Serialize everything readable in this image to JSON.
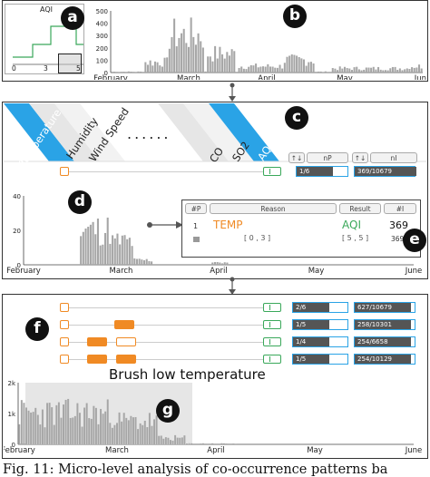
{
  "colors": {
    "accent_blue": "#2aa3e6",
    "orange": "#f08a24",
    "green": "#3aa85a",
    "bar": "#a6a6a6"
  },
  "badges": [
    "a",
    "b",
    "c",
    "d",
    "e",
    "f",
    "g"
  ],
  "panel_a": {
    "title": "AQI",
    "ticks": [
      "0",
      "3",
      "5"
    ]
  },
  "panel_b": {
    "yticks": [
      "500",
      "400",
      "300",
      "200",
      "100",
      "0"
    ],
    "months": [
      "February",
      "March",
      "April",
      "May",
      "June"
    ]
  },
  "panel_c": {
    "dimensions": [
      "Temperature",
      "Humidity",
      "Wind Speed",
      "CO",
      "SO2",
      "AQI"
    ],
    "dots": "......",
    "col_np": "nP",
    "col_nl": "nI",
    "sort_icon": "↑↓",
    "row_np": "1/6",
    "row_nl": "369/10679"
  },
  "panel_d": {
    "yticks": [
      "40",
      "20",
      "0"
    ],
    "months": [
      "February",
      "March",
      "April",
      "May",
      "June"
    ]
  },
  "panel_e": {
    "headers": [
      "#P",
      "Reason",
      "Result",
      "#I"
    ],
    "row": {
      "index": "1",
      "reason": "TEMP",
      "result": "AQI",
      "count": "369",
      "reason_range": "[ 0 , 3 ]",
      "result_range": "[ 5 , 5 ]",
      "count_small": "369"
    }
  },
  "panel_f": {
    "rows": [
      {
        "np": "2/6",
        "np_frac": 0.33,
        "nl": "627/10679"
      },
      {
        "np": "1/5",
        "np_frac": 0.2,
        "nl": "258/10301"
      },
      {
        "np": "1/4",
        "np_frac": 0.25,
        "nl": "254/6658"
      },
      {
        "np": "1/5",
        "np_frac": 0.2,
        "nl": "254/10129"
      }
    ]
  },
  "panel_g": {
    "annotation": "Brush low temperature",
    "yticks": [
      "2k",
      "1k",
      "0"
    ],
    "months": [
      "February",
      "March",
      "April",
      "May",
      "June"
    ]
  },
  "caption": "Fig. 11: Micro-level analysis of co-occurrence patterns ba"
}
